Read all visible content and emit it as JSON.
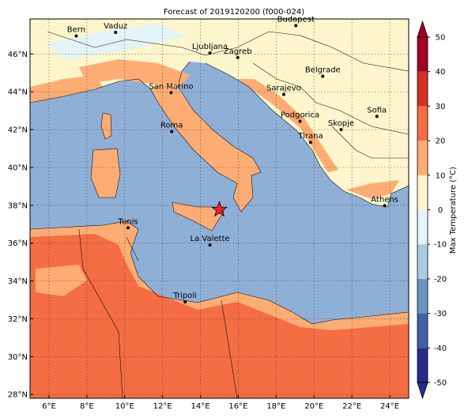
{
  "map": {
    "title": "Forecast of 2019120200 (f000-024)",
    "lon_range": [
      5,
      25
    ],
    "lat_range": [
      27.8,
      47.85
    ],
    "lon_ticks": [
      {
        "value": 6,
        "label": "6°E"
      },
      {
        "value": 8,
        "label": "8°E"
      },
      {
        "value": 10,
        "label": "10°E"
      },
      {
        "value": 12,
        "label": "12°E"
      },
      {
        "value": 14,
        "label": "14°E"
      },
      {
        "value": 16,
        "label": "16°E"
      },
      {
        "value": 18,
        "label": "18°E"
      },
      {
        "value": 20,
        "label": "20°E"
      },
      {
        "value": 22,
        "label": "22°E"
      },
      {
        "value": 24,
        "label": "24°E"
      }
    ],
    "lat_ticks": [
      {
        "value": 28,
        "label": "28°N"
      },
      {
        "value": 30,
        "label": "30°N"
      },
      {
        "value": 32,
        "label": "32°N"
      },
      {
        "value": 34,
        "label": "34°N"
      },
      {
        "value": 36,
        "label": "36°N"
      },
      {
        "value": 38,
        "label": "38°N"
      },
      {
        "value": 40,
        "label": "40°N"
      },
      {
        "value": 42,
        "label": "42°N"
      },
      {
        "value": 44,
        "label": "44°N"
      },
      {
        "value": 46,
        "label": "46°N"
      }
    ],
    "cities": [
      {
        "name": "Bern",
        "lon": 7.44,
        "lat": 46.95
      },
      {
        "name": "Vaduz",
        "lon": 9.52,
        "lat": 47.14
      },
      {
        "name": "Budapest",
        "lon": 19.04,
        "lat": 47.5
      },
      {
        "name": "Ljubljana",
        "lon": 14.5,
        "lat": 46.05
      },
      {
        "name": "Zagreb",
        "lon": 15.97,
        "lat": 45.81
      },
      {
        "name": "Belgrade",
        "lon": 20.46,
        "lat": 44.82
      },
      {
        "name": "San Marino",
        "lon": 12.45,
        "lat": 43.95
      },
      {
        "name": "Sarajevo",
        "lon": 18.4,
        "lat": 43.86
      },
      {
        "name": "Sofia",
        "lon": 23.32,
        "lat": 42.7
      },
      {
        "name": "Roma",
        "lon": 12.48,
        "lat": 41.9
      },
      {
        "name": "Podgorica",
        "lon": 19.26,
        "lat": 42.44
      },
      {
        "name": "Skopje",
        "lon": 21.43,
        "lat": 42.0
      },
      {
        "name": "Tirana",
        "lon": 19.82,
        "lat": 41.33
      },
      {
        "name": "Athens",
        "lon": 23.73,
        "lat": 37.98
      },
      {
        "name": "Tunis",
        "lon": 10.18,
        "lat": 36.81
      },
      {
        "name": "La Valette",
        "lon": 14.5,
        "lat": 35.9
      },
      {
        "name": "Tripoli",
        "lon": 13.19,
        "lat": 32.89
      }
    ],
    "star": {
      "lon": 15.0,
      "lat": 37.77
    },
    "colorbar": {
      "label": "Max Temperature (°C)",
      "ticks": [
        -50,
        -40,
        -30,
        -20,
        -10,
        0,
        10,
        20,
        30,
        40,
        50
      ],
      "colors": [
        "#282a8a",
        "#3f5fa6",
        "#6a93c3",
        "#a9cbe2",
        "#e3f3f7",
        "#fdf6cd",
        "#fdad74",
        "#f46d43",
        "#d73027",
        "#a50026"
      ]
    }
  }
}
